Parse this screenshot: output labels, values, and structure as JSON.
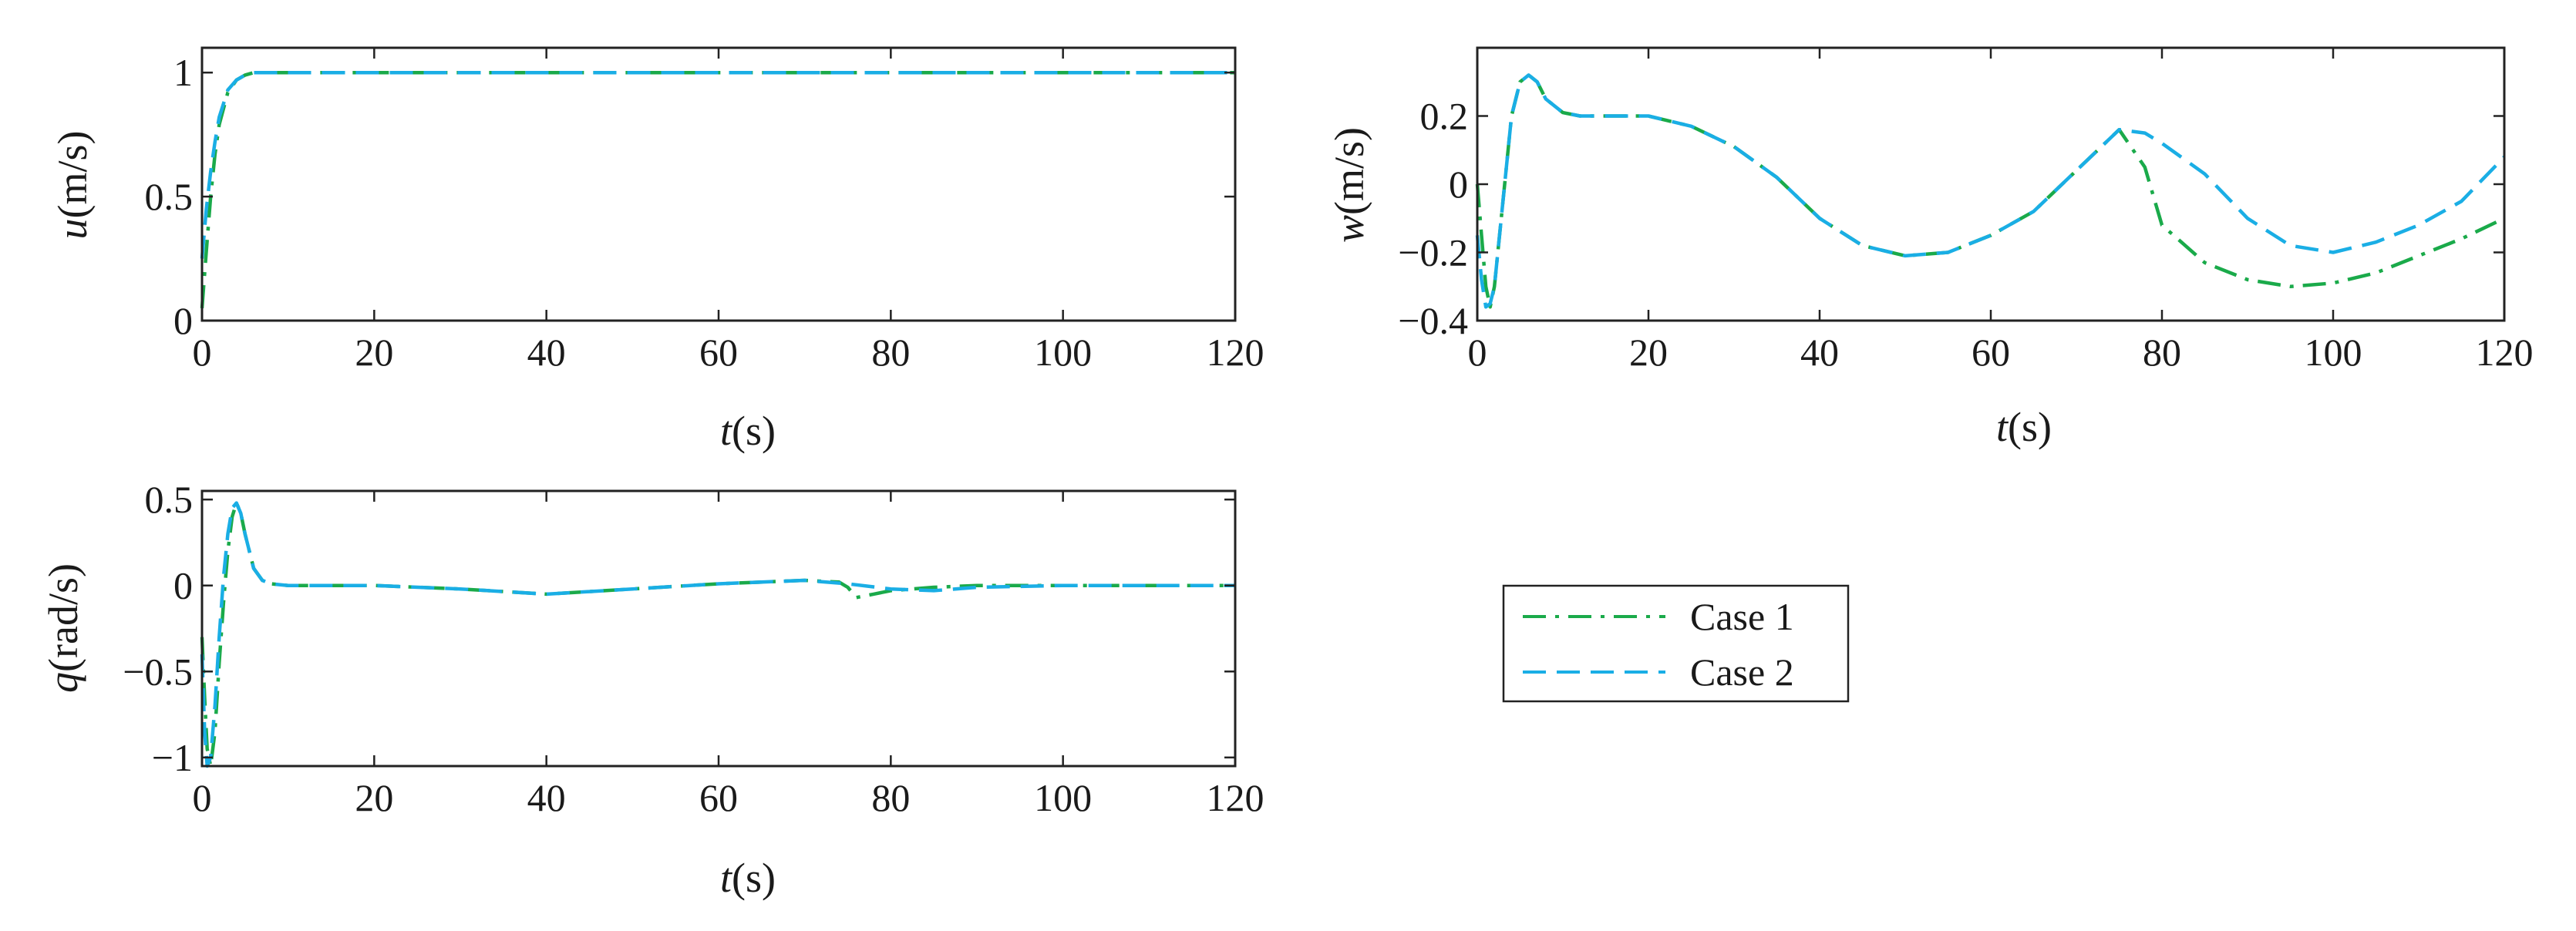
{
  "legend": {
    "entries": [
      {
        "label": "Case 1",
        "color": "#1aaa4a",
        "style": "dashdot"
      },
      {
        "label": "Case 2",
        "color": "#1aaee5",
        "style": "dashed"
      }
    ]
  },
  "chart_data": [
    {
      "id": "u",
      "type": "line",
      "xlabel": {
        "var": "t",
        "unit": "(s)"
      },
      "ylabel": {
        "var": "u",
        "unit": "(m/s)"
      },
      "xlim": [
        0,
        120
      ],
      "ylim": [
        0,
        1.1
      ],
      "xticks": [
        0,
        20,
        40,
        60,
        80,
        100,
        120
      ],
      "yticks": [
        0,
        0.5,
        1
      ],
      "xtick_labels": [
        "0",
        "20",
        "40",
        "60",
        "80",
        "100",
        "120"
      ],
      "ytick_labels": [
        "0",
        "0.5",
        "1"
      ],
      "series": [
        {
          "name": "Case 1",
          "x": [
            0,
            0.5,
            1,
            1.5,
            2,
            3,
            4,
            5,
            6,
            8,
            10,
            20,
            40,
            60,
            80,
            100,
            120
          ],
          "y": [
            0.05,
            0.28,
            0.5,
            0.67,
            0.79,
            0.92,
            0.97,
            0.99,
            1.0,
            1.0,
            1.0,
            1.0,
            1.0,
            1.0,
            1.0,
            1.0,
            1.0
          ]
        },
        {
          "name": "Case 2",
          "x": [
            0,
            0.5,
            1,
            1.5,
            2,
            3,
            4,
            5,
            6,
            8,
            10,
            20,
            40,
            60,
            80,
            100,
            120
          ],
          "y": [
            0.25,
            0.45,
            0.6,
            0.72,
            0.82,
            0.93,
            0.97,
            0.99,
            1.0,
            1.0,
            1.0,
            1.0,
            1.0,
            1.0,
            1.0,
            1.0,
            1.0
          ]
        }
      ]
    },
    {
      "id": "w",
      "type": "line",
      "xlabel": {
        "var": "t",
        "unit": "(s)"
      },
      "ylabel": {
        "var": "w",
        "unit": "(m/s)"
      },
      "xlim": [
        0,
        120
      ],
      "ylim": [
        -0.4,
        0.4
      ],
      "xticks": [
        0,
        20,
        40,
        60,
        80,
        100,
        120
      ],
      "yticks": [
        -0.4,
        -0.2,
        0,
        0.2
      ],
      "xtick_labels": [
        "0",
        "20",
        "40",
        "60",
        "80",
        "100",
        "120"
      ],
      "ytick_labels": [
        "−0.4",
        "−0.2",
        "0",
        "0.2"
      ],
      "series": [
        {
          "name": "Case 1",
          "x": [
            0,
            0.5,
            1,
            1.5,
            2,
            3,
            4,
            5,
            6,
            7,
            8,
            10,
            12,
            15,
            20,
            25,
            30,
            35,
            40,
            45,
            50,
            55,
            60,
            65,
            70,
            75,
            78,
            80,
            85,
            90,
            95,
            100,
            105,
            110,
            115,
            120
          ],
          "y": [
            0,
            -0.15,
            -0.3,
            -0.36,
            -0.3,
            -0.05,
            0.2,
            0.3,
            0.32,
            0.3,
            0.25,
            0.21,
            0.2,
            0.2,
            0.2,
            0.17,
            0.11,
            0.02,
            -0.1,
            -0.18,
            -0.21,
            -0.2,
            -0.15,
            -0.08,
            0.04,
            0.16,
            0.05,
            -0.12,
            -0.23,
            -0.28,
            -0.3,
            -0.29,
            -0.26,
            -0.21,
            -0.16,
            -0.1
          ]
        },
        {
          "name": "Case 2",
          "x": [
            0,
            0.5,
            1,
            1.5,
            2,
            3,
            4,
            5,
            6,
            7,
            8,
            10,
            12,
            15,
            20,
            25,
            30,
            35,
            40,
            45,
            50,
            55,
            60,
            65,
            70,
            75,
            78,
            80,
            85,
            90,
            95,
            100,
            105,
            110,
            115,
            120
          ],
          "y": [
            -0.15,
            -0.28,
            -0.36,
            -0.35,
            -0.3,
            -0.05,
            0.2,
            0.3,
            0.32,
            0.3,
            0.25,
            0.21,
            0.2,
            0.2,
            0.2,
            0.17,
            0.11,
            0.02,
            -0.1,
            -0.18,
            -0.21,
            -0.2,
            -0.15,
            -0.08,
            0.04,
            0.16,
            0.15,
            0.12,
            0.03,
            -0.1,
            -0.18,
            -0.2,
            -0.17,
            -0.12,
            -0.05,
            0.08
          ]
        }
      ]
    },
    {
      "id": "q",
      "type": "line",
      "xlabel": {
        "var": "t",
        "unit": "(s)"
      },
      "ylabel": {
        "var": "q",
        "unit": "(rad/s)"
      },
      "xlim": [
        0,
        120
      ],
      "ylim": [
        -1.05,
        0.55
      ],
      "xticks": [
        0,
        20,
        40,
        60,
        80,
        100,
        120
      ],
      "yticks": [
        -1,
        -0.5,
        0,
        0.5
      ],
      "xtick_labels": [
        "0",
        "20",
        "40",
        "60",
        "80",
        "100",
        "120"
      ],
      "ytick_labels": [
        "−1",
        "−0.5",
        "0",
        "0.5"
      ],
      "series": [
        {
          "name": "Case 1",
          "x": [
            0,
            0.3,
            0.6,
            1,
            1.5,
            2,
            2.5,
            3,
            3.5,
            4,
            4.5,
            5,
            6,
            7,
            8,
            10,
            20,
            30,
            40,
            50,
            60,
            70,
            74,
            75,
            76,
            78,
            80,
            85,
            90,
            100,
            110,
            120
          ],
          "y": [
            -0.3,
            -0.65,
            -0.95,
            -1.05,
            -0.85,
            -0.45,
            -0.1,
            0.2,
            0.4,
            0.48,
            0.42,
            0.3,
            0.1,
            0.03,
            0.01,
            0.0,
            0.0,
            -0.02,
            -0.05,
            -0.02,
            0.01,
            0.03,
            0.02,
            -0.01,
            -0.07,
            -0.05,
            -0.03,
            -0.01,
            0.0,
            0.0,
            0.0,
            0.0
          ]
        },
        {
          "name": "Case 2",
          "x": [
            0,
            0.3,
            0.6,
            1,
            1.5,
            2,
            2.5,
            3,
            3.5,
            4,
            4.5,
            5,
            6,
            7,
            8,
            10,
            20,
            30,
            40,
            50,
            60,
            70,
            75,
            80,
            85,
            90,
            100,
            110,
            120
          ],
          "y": [
            -0.4,
            -0.85,
            -1.05,
            -1.0,
            -0.7,
            -0.3,
            0.05,
            0.3,
            0.45,
            0.48,
            0.42,
            0.3,
            0.1,
            0.03,
            0.01,
            0.0,
            0.0,
            -0.02,
            -0.05,
            -0.02,
            0.01,
            0.03,
            0.01,
            -0.02,
            -0.03,
            -0.01,
            0.0,
            0.0,
            0.0
          ]
        }
      ]
    }
  ]
}
